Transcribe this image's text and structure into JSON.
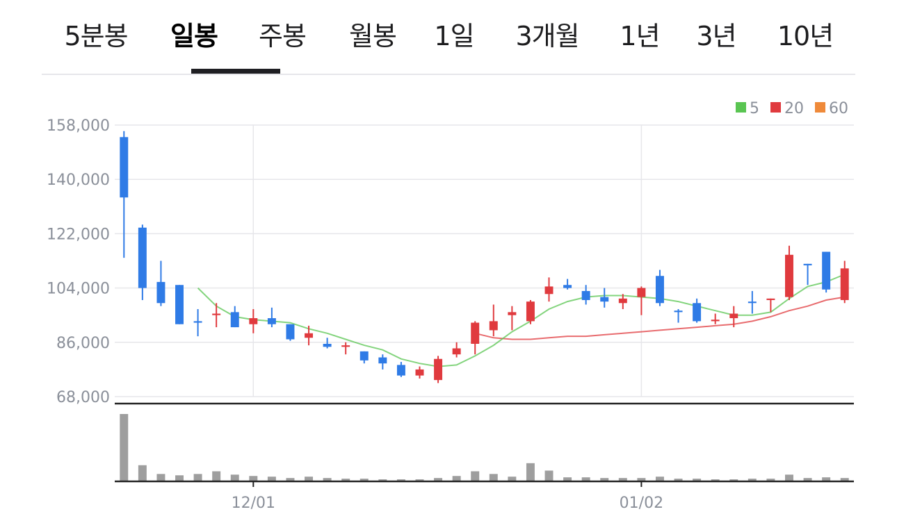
{
  "tabs": [
    {
      "label": "5분봉",
      "active": false
    },
    {
      "label": "일봉",
      "active": true
    },
    {
      "label": "주봉",
      "active": false
    },
    {
      "label": "월봉",
      "active": false
    },
    {
      "label": "1일",
      "active": false
    },
    {
      "label": "3개월",
      "active": false
    },
    {
      "label": "1년",
      "active": false
    },
    {
      "label": "3년",
      "active": false
    },
    {
      "label": "10년",
      "active": false
    }
  ],
  "colors": {
    "up": "#e03a3e",
    "down": "#2f7be6",
    "ma5": "#5ac552",
    "ma20": "#e03a3e",
    "ma60": "#ef8a3a",
    "volume": "#9e9e9e",
    "grid": "#e6e6ea",
    "axis": "#222222"
  },
  "chart_data": {
    "type": "candlestick",
    "ylim": [
      68000,
      158000
    ],
    "yticks": [
      "158,000",
      "140,000",
      "122,000",
      "104,000",
      "86,000",
      "68,000"
    ],
    "ytick_values": [
      158000,
      140000,
      122000,
      104000,
      86000,
      68000
    ],
    "xtick_labels": [
      {
        "label": "12/01",
        "index": 7
      },
      {
        "label": "01/02",
        "index": 28
      }
    ],
    "legend": [
      {
        "name": "5",
        "color": "#5ac552"
      },
      {
        "name": "20",
        "color": "#e03a3e"
      },
      {
        "name": "60",
        "color": "#ef8a3a"
      }
    ],
    "candles": [
      {
        "o": 154000,
        "h": 156000,
        "l": 114000,
        "c": 134000,
        "v": 1.0
      },
      {
        "o": 124000,
        "h": 125000,
        "l": 100000,
        "c": 104000,
        "v": 0.24
      },
      {
        "o": 106000,
        "h": 113000,
        "l": 98000,
        "c": 99000,
        "v": 0.11
      },
      {
        "o": 105000,
        "h": 105000,
        "l": 92000,
        "c": 92000,
        "v": 0.09
      },
      {
        "o": 93000,
        "h": 97000,
        "l": 88000,
        "c": 92500,
        "v": 0.11
      },
      {
        "o": 95000,
        "h": 99000,
        "l": 91000,
        "c": 95500,
        "v": 0.15
      },
      {
        "o": 96000,
        "h": 98000,
        "l": 91000,
        "c": 91000,
        "v": 0.1
      },
      {
        "o": 92000,
        "h": 97000,
        "l": 89000,
        "c": 94000,
        "v": 0.08
      },
      {
        "o": 94000,
        "h": 97500,
        "l": 91000,
        "c": 92000,
        "v": 0.07
      },
      {
        "o": 92000,
        "h": 92000,
        "l": 86500,
        "c": 87000,
        "v": 0.05
      },
      {
        "o": 87500,
        "h": 91500,
        "l": 85000,
        "c": 89000,
        "v": 0.07
      },
      {
        "o": 85500,
        "h": 87500,
        "l": 84000,
        "c": 84500,
        "v": 0.05
      },
      {
        "o": 84500,
        "h": 86000,
        "l": 82000,
        "c": 85000,
        "v": 0.04
      },
      {
        "o": 83000,
        "h": 83000,
        "l": 79000,
        "c": 80000,
        "v": 0.04
      },
      {
        "o": 81000,
        "h": 82000,
        "l": 77000,
        "c": 79000,
        "v": 0.03
      },
      {
        "o": 78500,
        "h": 79500,
        "l": 74500,
        "c": 75000,
        "v": 0.03
      },
      {
        "o": 75000,
        "h": 78000,
        "l": 74000,
        "c": 77000,
        "v": 0.03
      },
      {
        "o": 73500,
        "h": 81500,
        "l": 72500,
        "c": 80500,
        "v": 0.05
      },
      {
        "o": 82000,
        "h": 86000,
        "l": 81000,
        "c": 84000,
        "v": 0.08
      },
      {
        "o": 85500,
        "h": 93000,
        "l": 82000,
        "c": 92500,
        "v": 0.15
      },
      {
        "o": 90000,
        "h": 98500,
        "l": 88000,
        "c": 93000,
        "v": 0.11
      },
      {
        "o": 95000,
        "h": 98000,
        "l": 90000,
        "c": 96000,
        "v": 0.07
      },
      {
        "o": 93000,
        "h": 100000,
        "l": 92000,
        "c": 99500,
        "v": 0.27
      },
      {
        "o": 102000,
        "h": 107500,
        "l": 99500,
        "c": 104500,
        "v": 0.16
      },
      {
        "o": 105000,
        "h": 107000,
        "l": 103500,
        "c": 104000,
        "v": 0.06
      },
      {
        "o": 103000,
        "h": 105000,
        "l": 98500,
        "c": 100000,
        "v": 0.06
      },
      {
        "o": 101000,
        "h": 104000,
        "l": 97500,
        "c": 99500,
        "v": 0.05
      },
      {
        "o": 99000,
        "h": 102000,
        "l": 97000,
        "c": 100500,
        "v": 0.05
      },
      {
        "o": 101000,
        "h": 104500,
        "l": 95000,
        "c": 104000,
        "v": 0.05
      },
      {
        "o": 108000,
        "h": 110000,
        "l": 98000,
        "c": 99000,
        "v": 0.07
      },
      {
        "o": 96500,
        "h": 97000,
        "l": 92500,
        "c": 96000,
        "v": 0.04
      },
      {
        "o": 99000,
        "h": 100500,
        "l": 92500,
        "c": 93000,
        "v": 0.04
      },
      {
        "o": 93000,
        "h": 95500,
        "l": 92000,
        "c": 93500,
        "v": 0.03
      },
      {
        "o": 94000,
        "h": 98000,
        "l": 91000,
        "c": 95500,
        "v": 0.03
      },
      {
        "o": 99500,
        "h": 103000,
        "l": 95500,
        "c": 99000,
        "v": 0.04
      },
      {
        "o": 100000,
        "h": 100500,
        "l": 96000,
        "c": 100500,
        "v": 0.04
      },
      {
        "o": 101000,
        "h": 118000,
        "l": 100000,
        "c": 115000,
        "v": 0.1
      },
      {
        "o": 112000,
        "h": 112000,
        "l": 105000,
        "c": 111500,
        "v": 0.05
      },
      {
        "o": 116000,
        "h": 116000,
        "l": 102500,
        "c": 103500,
        "v": 0.06
      },
      {
        "o": 100000,
        "h": 113000,
        "l": 99000,
        "c": 110500,
        "v": 0.05
      }
    ],
    "ma5": [
      null,
      null,
      null,
      null,
      104000,
      98000,
      94500,
      93500,
      93000,
      92500,
      90500,
      89000,
      87000,
      85000,
      83500,
      80500,
      79000,
      78000,
      78500,
      81500,
      85000,
      89500,
      93000,
      97000,
      99500,
      101000,
      101500,
      101500,
      101000,
      100500,
      99500,
      98000,
      96500,
      95000,
      95000,
      96000,
      100500,
      104500,
      106000,
      108500
    ],
    "ma20": [
      null,
      null,
      null,
      null,
      null,
      null,
      null,
      null,
      null,
      null,
      null,
      null,
      null,
      null,
      null,
      null,
      null,
      null,
      null,
      89000,
      87500,
      87000,
      87000,
      87500,
      88000,
      88000,
      88500,
      89000,
      89500,
      90000,
      90500,
      91000,
      91500,
      92000,
      93000,
      94500,
      96500,
      98000,
      100000,
      101000
    ]
  }
}
